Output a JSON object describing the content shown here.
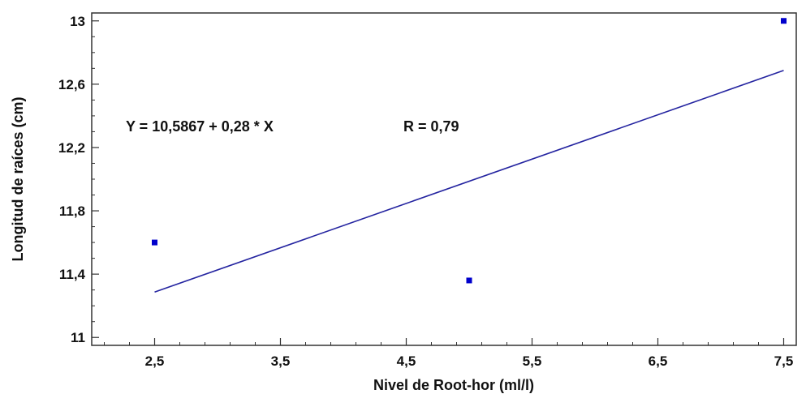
{
  "chart_data": {
    "type": "scatter",
    "title": "",
    "xlabel": "Nivel de Root-hor (ml/l)",
    "ylabel": "Longitud de raíces (cm)",
    "xlim": [
      2.0,
      7.6
    ],
    "ylim": [
      10.95,
      13.05
    ],
    "x_ticks": [
      2.5,
      3.5,
      4.5,
      5.5,
      6.5,
      7.5
    ],
    "x_tick_labels": [
      "2,5",
      "3,5",
      "4,5",
      "5,5",
      "6,5",
      "7,5"
    ],
    "y_ticks": [
      11,
      11.4,
      11.8,
      12.2,
      12.6,
      13
    ],
    "y_tick_labels": [
      "11",
      "11,4",
      "11,8",
      "12,2",
      "12,6",
      "13"
    ],
    "grid": false,
    "points": [
      {
        "x": 2.5,
        "y": 11.6
      },
      {
        "x": 5.0,
        "y": 11.36
      },
      {
        "x": 7.5,
        "y": 13.0
      }
    ],
    "fit_line": {
      "intercept": 10.5867,
      "slope": 0.28,
      "x_range": [
        2.5,
        7.5
      ]
    },
    "annotations": {
      "equation": "Y = 10,5867 + 0,28 * X",
      "r_value": "R = 0,79"
    },
    "colors": {
      "points": "#0000cc",
      "line": "#2424a0",
      "axes": "#333333"
    }
  }
}
